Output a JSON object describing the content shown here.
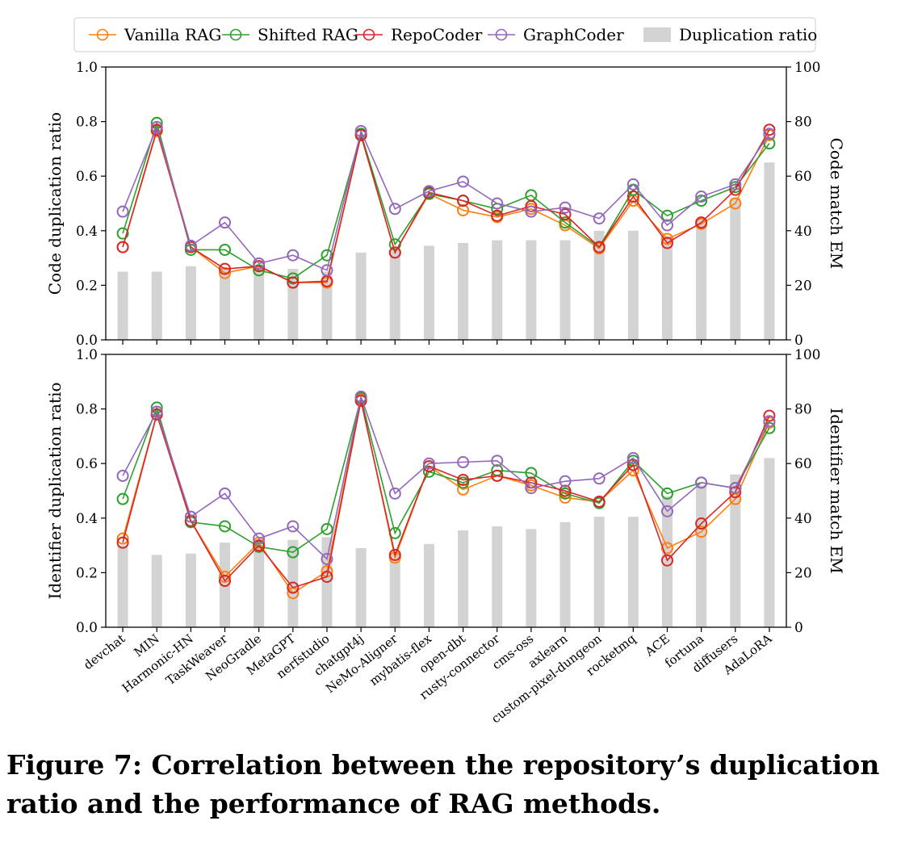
{
  "caption": "Figure 7: Correlation between the repository’s duplication ratio and the performance of RAG methods.",
  "chart_data": {
    "type": "line",
    "legend_placement": "top-center",
    "legend": [
      {
        "label": "Vanilla RAG",
        "kind": "line",
        "color": "#ff7f0e"
      },
      {
        "label": "Shifted RAG",
        "kind": "line",
        "color": "#2ca02c"
      },
      {
        "label": "RepoCoder",
        "kind": "line",
        "color": "#d62728"
      },
      {
        "label": "GraphCoder",
        "kind": "line",
        "color": "#9467bd"
      },
      {
        "label": "Duplication ratio",
        "kind": "bar",
        "color": "#d3d3d3"
      }
    ],
    "categories": [
      "devchat",
      "MIN",
      "Harmonic-HN",
      "TaskWeaver",
      "NeoGradle",
      "MetaGPT",
      "nerfstudio",
      "chatgpt4j",
      "NeMo-Aligner",
      "mybatis-flex",
      "open-dbt",
      "rusty-connector",
      "cms-oss",
      "axlearn",
      "custom-pixel-dungeon",
      "rocketmq",
      "ACE",
      "fortuna",
      "diffusers",
      "AdaLoRA"
    ],
    "grid": false,
    "panels": [
      {
        "ylabel_left": "Code duplication ratio",
        "ylabel_right": "Code match EM",
        "ylim_left": [
          0,
          1.0
        ],
        "ylim_right": [
          0,
          100
        ],
        "yticks_left": [
          "0.0",
          "0.2",
          "0.4",
          "0.6",
          "0.8",
          "1.0"
        ],
        "yticks_right": [
          "0",
          "20",
          "40",
          "60",
          "80",
          "100"
        ],
        "bars": [
          0.25,
          0.25,
          0.27,
          0.26,
          0.27,
          0.26,
          0.25,
          0.32,
          0.33,
          0.345,
          0.355,
          0.365,
          0.365,
          0.365,
          0.4,
          0.4,
          0.38,
          0.44,
          0.52,
          0.65
        ],
        "series": [
          {
            "name": "Vanilla RAG",
            "values": [
              34,
              76.5,
              34,
              24.5,
              27,
              21,
              21,
              75,
              32,
              53.5,
              47.5,
              45,
              48,
              42,
              33.5,
              51,
              37,
              42.5,
              50,
              75
            ]
          },
          {
            "name": "Shifted RAG",
            "values": [
              39,
              79.5,
              33,
              33,
              25.5,
              22.5,
              31,
              75.5,
              35,
              53.5,
              51,
              48,
              53,
              43,
              34,
              55,
              45.5,
              51,
              56,
              72
            ]
          },
          {
            "name": "RepoCoder",
            "values": [
              34,
              77,
              34,
              26,
              27,
              21,
              21.5,
              75,
              32,
              54,
              51,
              45.5,
              49,
              46,
              34,
              52.5,
              35.5,
              43,
              55,
              77
            ]
          },
          {
            "name": "GraphCoder",
            "values": [
              47,
              78,
              34.5,
              43,
              28,
              31,
              25.5,
              76.5,
              48,
              54.5,
              58,
              50,
              47,
              48.5,
              44.5,
              57,
              42,
              52.5,
              57,
              75.5
            ]
          }
        ]
      },
      {
        "ylabel_left": "Identifier duplication ratio",
        "ylabel_right": "Identifier match EM",
        "ylim_left": [
          0,
          1.0
        ],
        "ylim_right": [
          0,
          100
        ],
        "yticks_left": [
          "0.0",
          "0.2",
          "0.4",
          "0.6",
          "0.8",
          "1.0"
        ],
        "yticks_right": [
          "0",
          "20",
          "40",
          "60",
          "80",
          "100"
        ],
        "bars": [
          0.3,
          0.265,
          0.27,
          0.31,
          0.3,
          0.32,
          0.33,
          0.29,
          0.27,
          0.305,
          0.355,
          0.37,
          0.36,
          0.385,
          0.405,
          0.405,
          0.48,
          0.52,
          0.56,
          0.62
        ],
        "series": [
          {
            "name": "Vanilla RAG",
            "values": [
              32.5,
              78,
              39,
              18.5,
              31,
              12.5,
              20.5,
              83.5,
              25.5,
              59,
              50.5,
              55.5,
              52,
              47.5,
              46,
              57.5,
              29,
              35,
              47,
              75
            ]
          },
          {
            "name": "Shifted RAG",
            "values": [
              47,
              80.5,
              38.5,
              37,
              29.5,
              27.5,
              36,
              84,
              34.5,
              57,
              53,
              57.5,
              56.5,
              49,
              45.5,
              61,
              49,
              53,
              51,
              73
            ]
          },
          {
            "name": "RepoCoder",
            "values": [
              31,
              78,
              39,
              17,
              30,
              14.5,
              18.5,
              83,
              26.5,
              59,
              54,
              55.5,
              53,
              50,
              46,
              59.5,
              24.5,
              38,
              49.5,
              77.5
            ]
          },
          {
            "name": "GraphCoder",
            "values": [
              55.5,
              79,
              40.5,
              49,
              32.5,
              37,
              25,
              84.5,
              49,
              60,
              60.5,
              61,
              51,
              53.5,
              54.5,
              62,
              42.5,
              53,
              51,
              75.5
            ]
          }
        ]
      }
    ]
  }
}
